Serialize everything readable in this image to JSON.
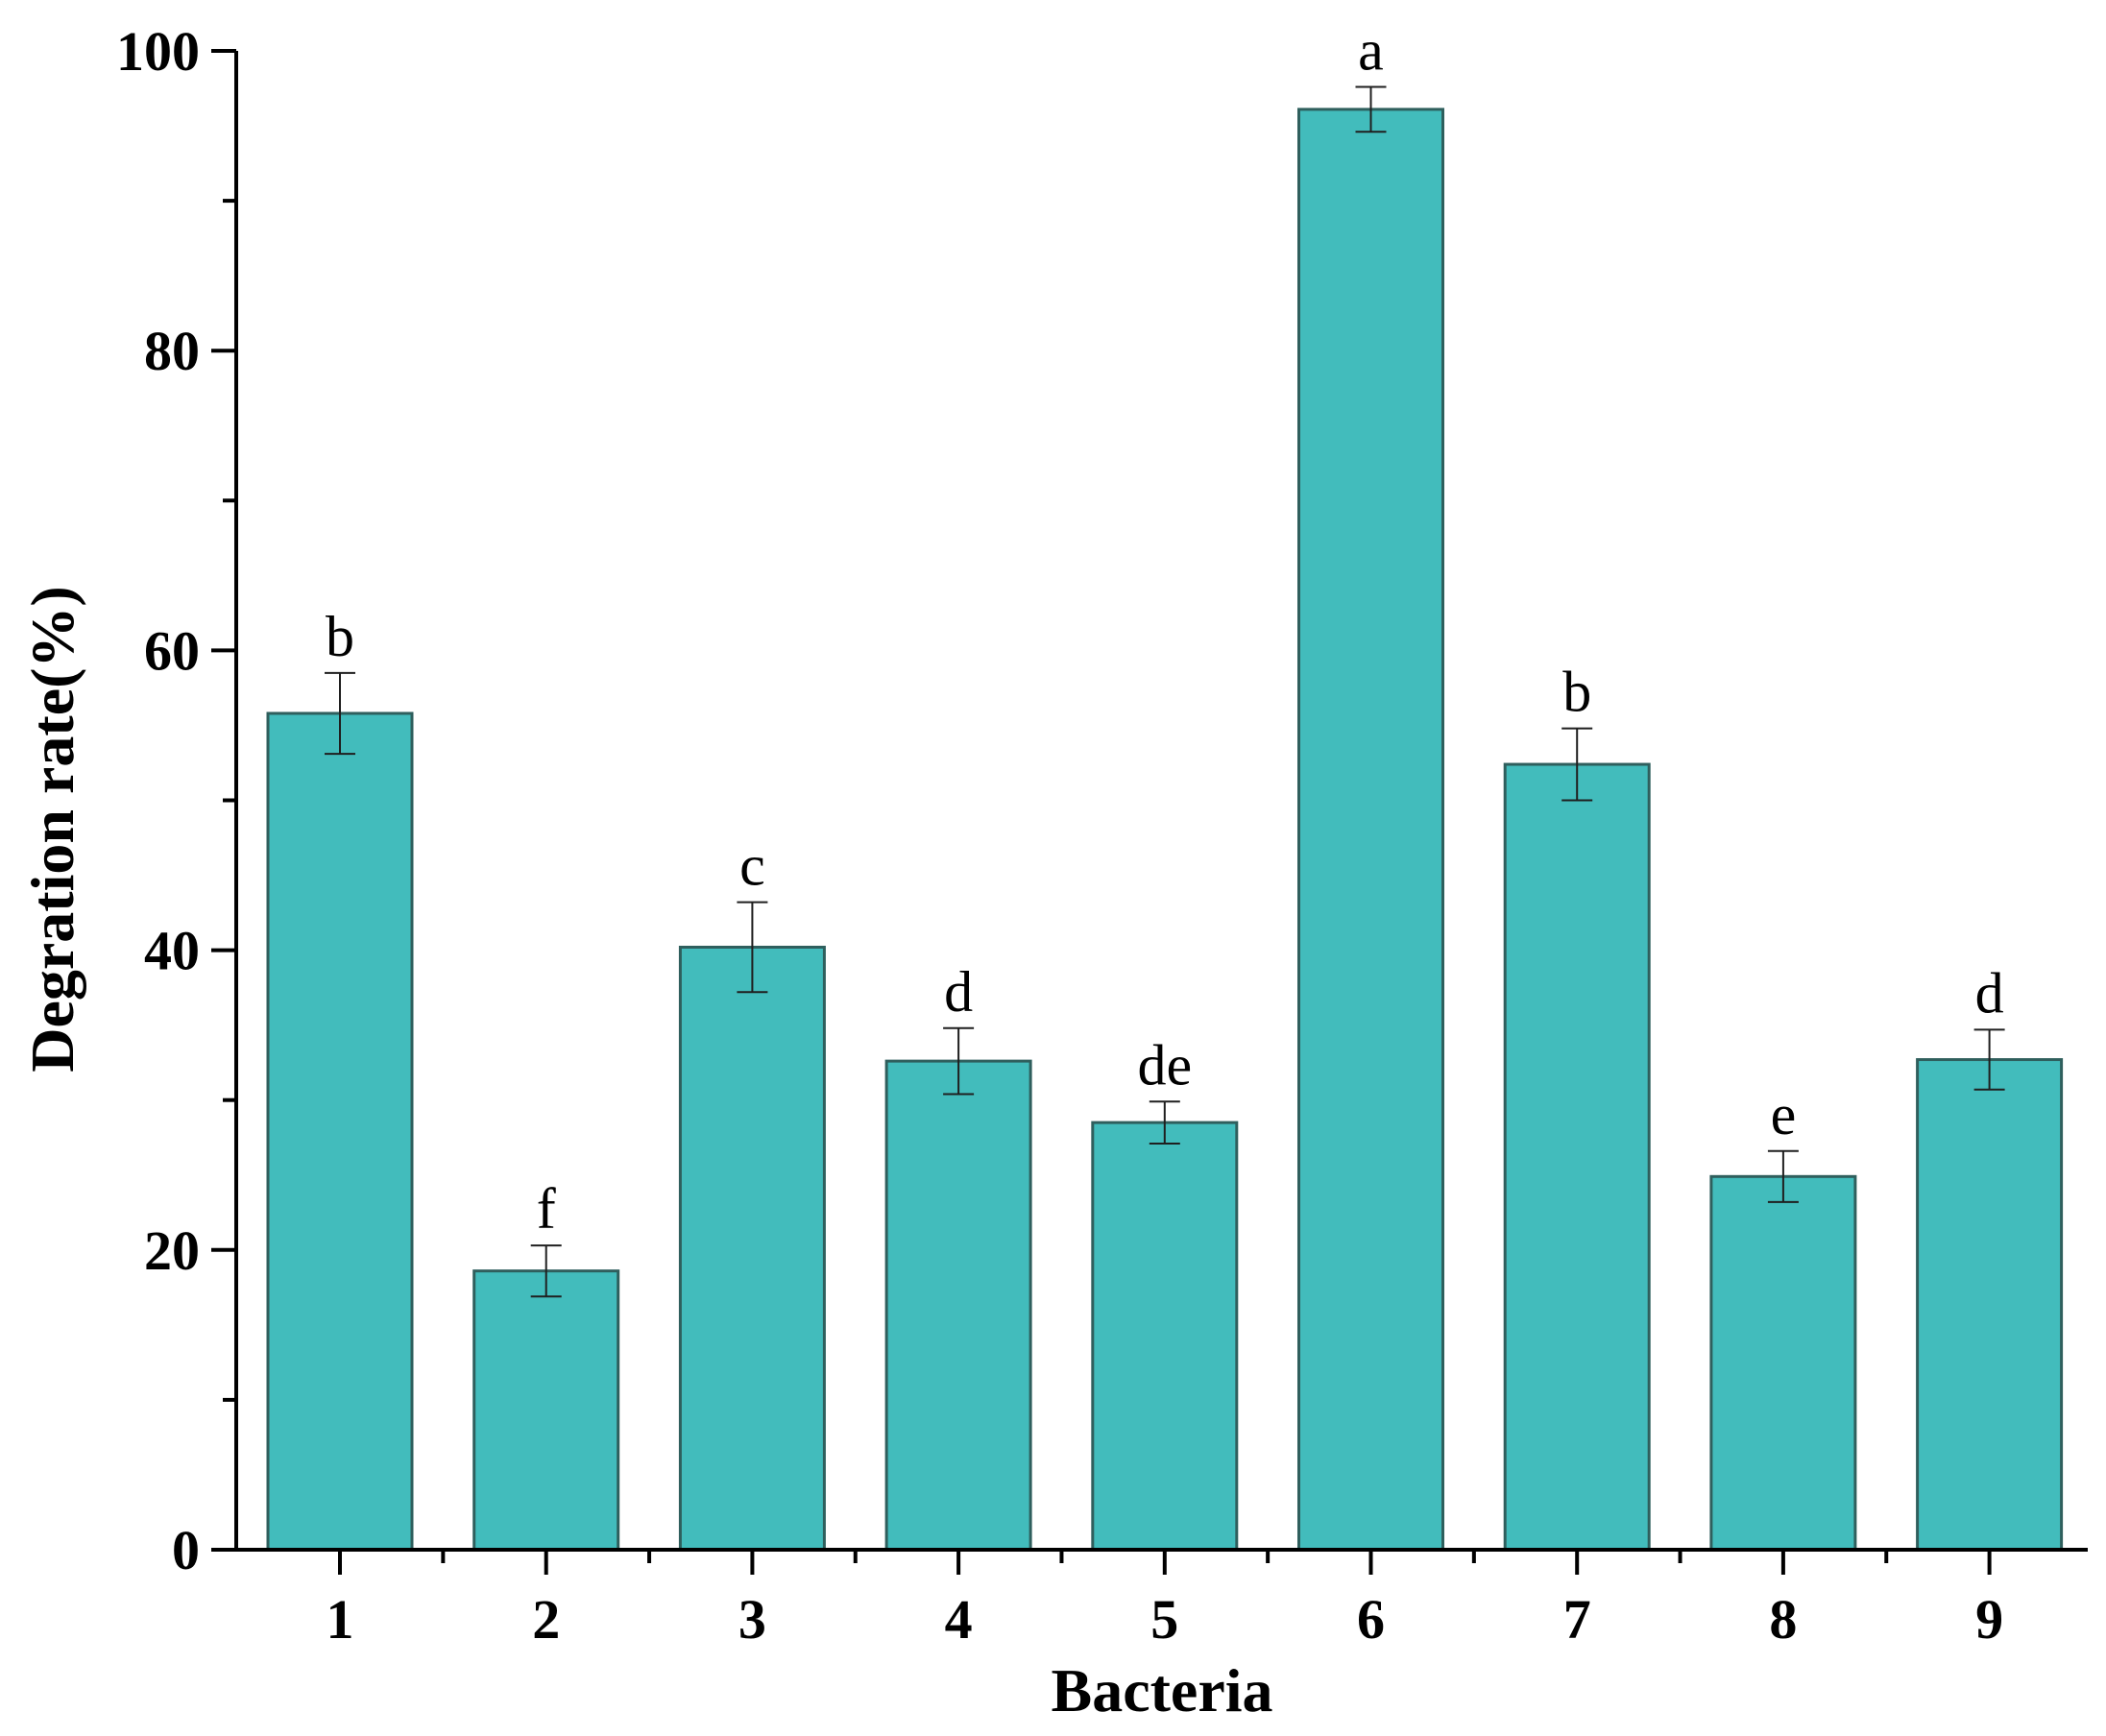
{
  "chart_data": {
    "type": "bar",
    "title": "",
    "xlabel": "Bacteria",
    "ylabel": "Degration rate(%)",
    "categories": [
      "1",
      "2",
      "3",
      "4",
      "5",
      "6",
      "7",
      "8",
      "9"
    ],
    "values": [
      55.8,
      18.6,
      40.2,
      32.6,
      28.5,
      96.1,
      52.4,
      24.9,
      32.7
    ],
    "errors": [
      2.7,
      1.7,
      3.0,
      2.2,
      1.4,
      1.5,
      2.4,
      1.7,
      2.0
    ],
    "significance_labels": [
      "b",
      "f",
      "c",
      "d",
      "de",
      "a",
      "b",
      "e",
      "d"
    ],
    "ylim": [
      0,
      100
    ],
    "yticks": [
      0,
      20,
      40,
      60,
      80,
      100
    ],
    "grid": false,
    "legend": "none",
    "bar_color": "#42bcbc",
    "bar_edge_color": "#2f5f5d"
  }
}
